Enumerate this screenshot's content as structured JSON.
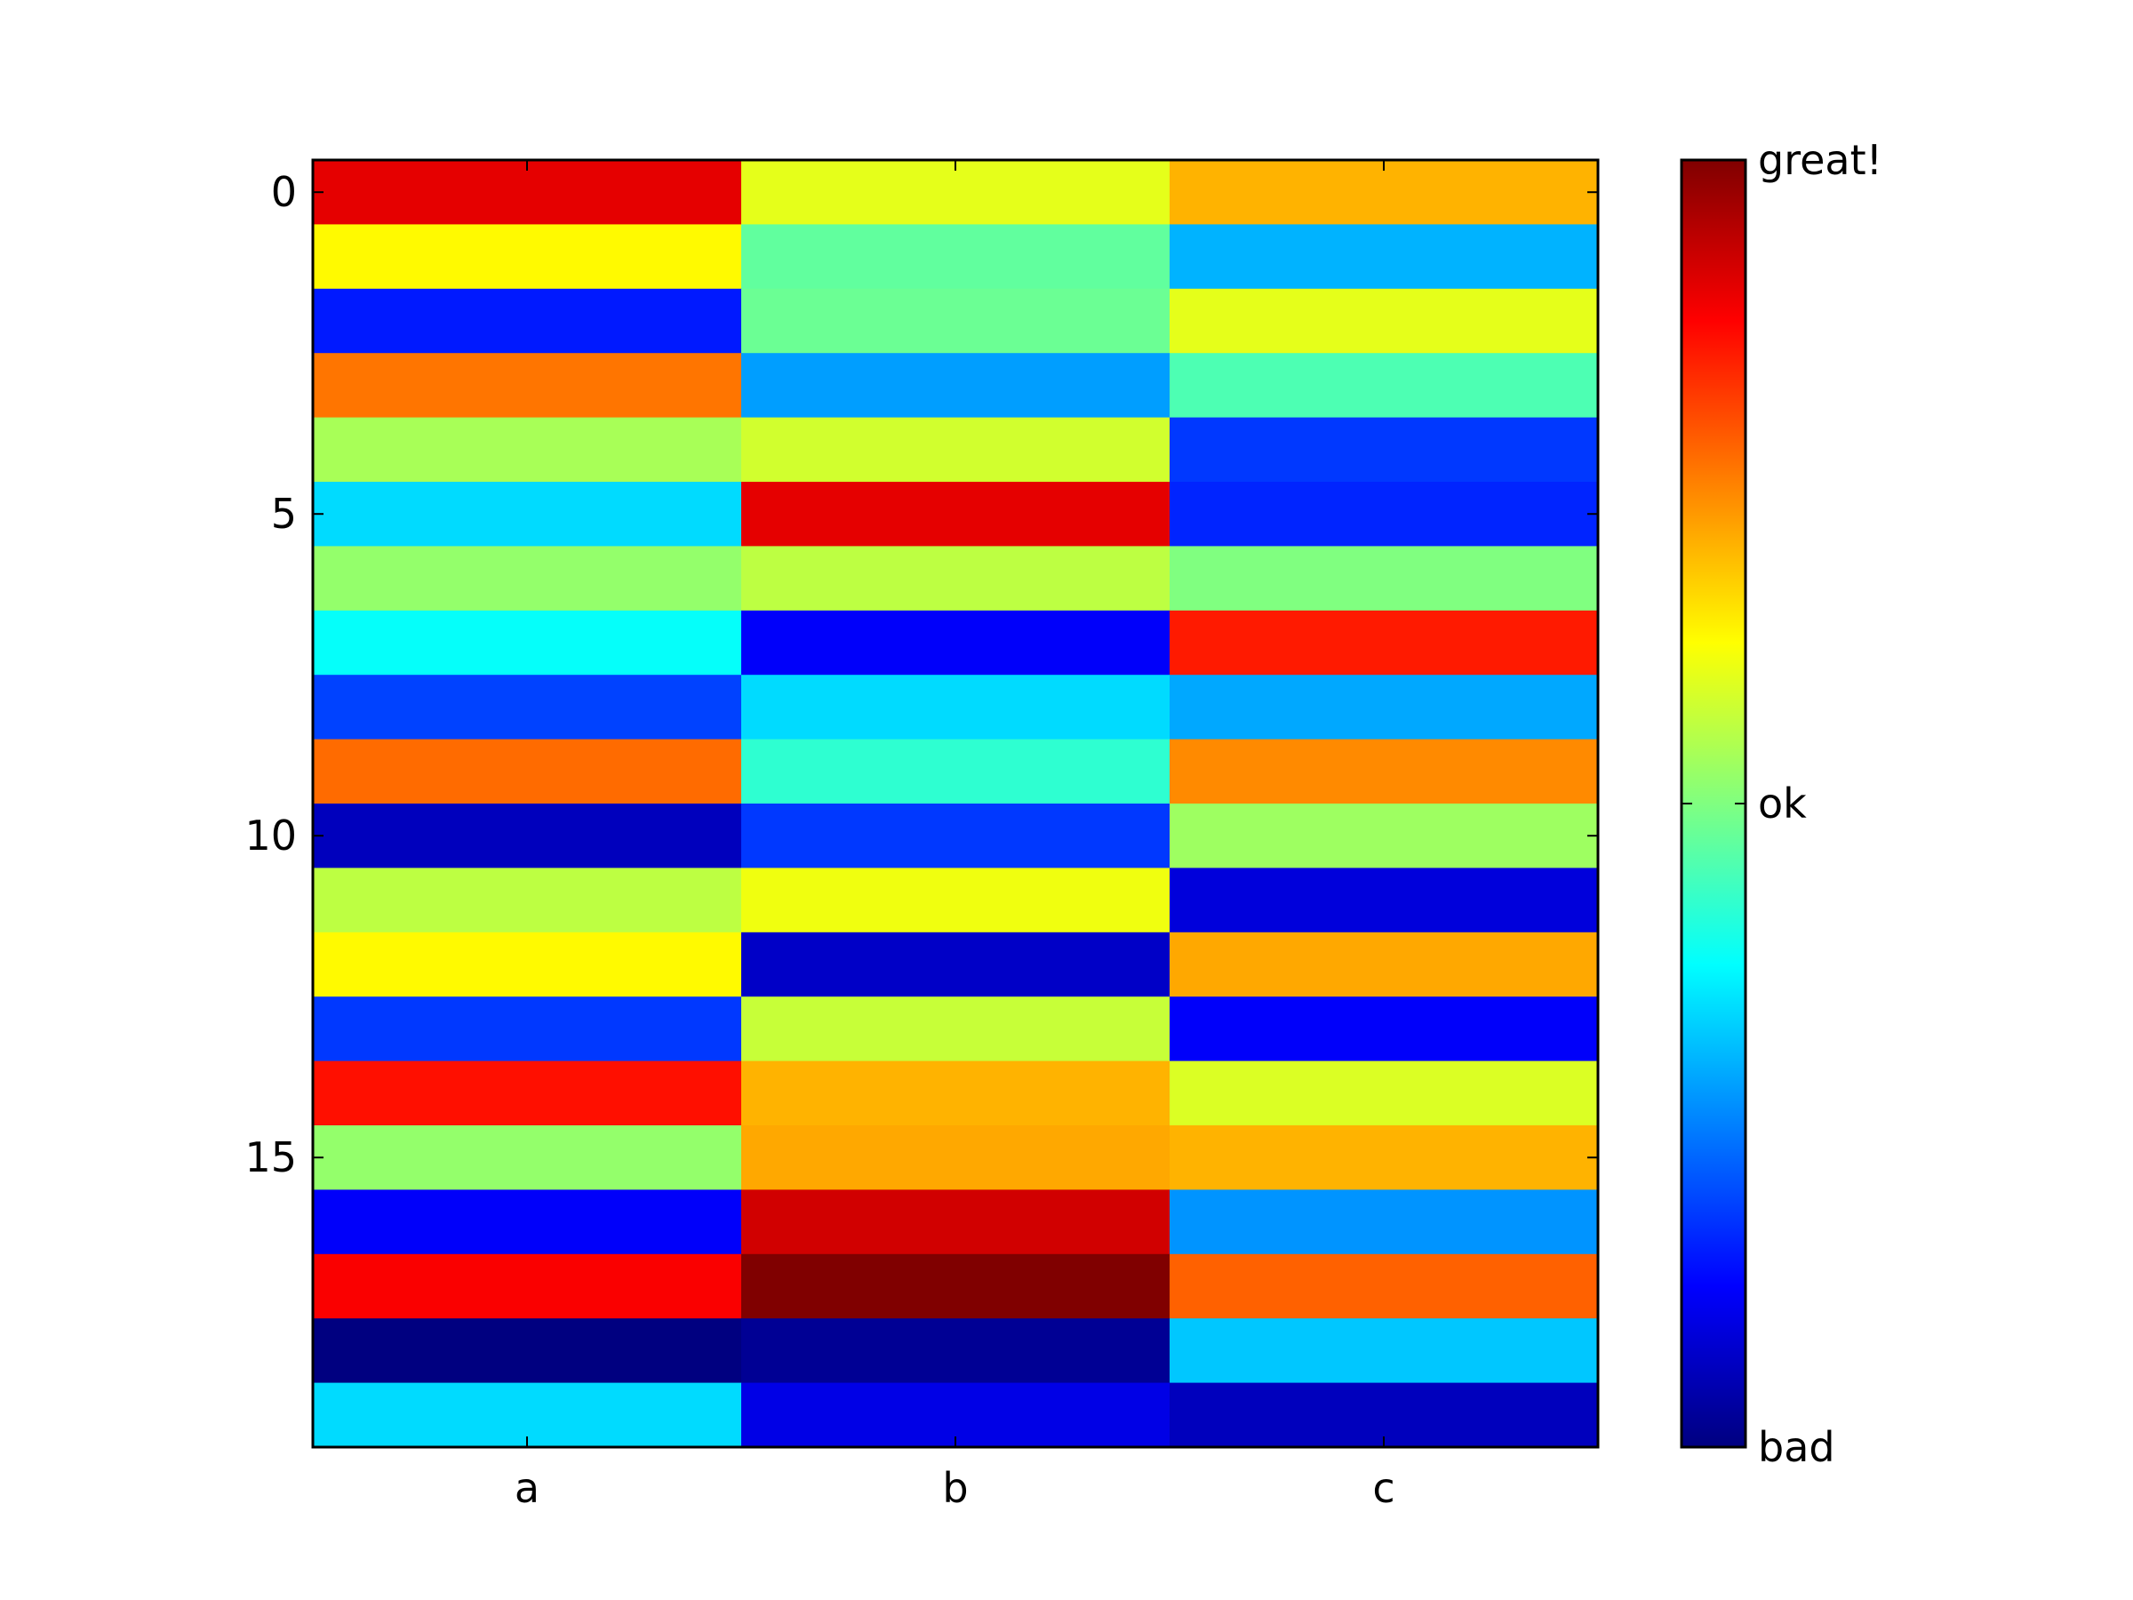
{
  "chart_data": {
    "type": "heatmap",
    "colormap": "jet",
    "grid": false,
    "x_categories": [
      "a",
      "b",
      "c"
    ],
    "y_ticks": [
      0,
      5,
      10,
      15
    ],
    "y_tick_labels": [
      "0",
      "5",
      "10",
      "15"
    ],
    "vlim": [
      0,
      1
    ],
    "rows": 20,
    "values": [
      [
        0.9,
        0.6,
        0.7
      ],
      [
        0.63,
        0.47,
        0.3
      ],
      [
        0.15,
        0.48,
        0.6
      ],
      [
        0.76,
        0.28,
        0.45
      ],
      [
        0.54,
        0.58,
        0.18
      ],
      [
        0.34,
        0.9,
        0.16
      ],
      [
        0.52,
        0.56,
        0.5
      ],
      [
        0.38,
        0.12,
        0.85
      ],
      [
        0.19,
        0.34,
        0.29
      ],
      [
        0.77,
        0.42,
        0.74
      ],
      [
        0.06,
        0.18,
        0.53
      ],
      [
        0.56,
        0.61,
        0.09
      ],
      [
        0.63,
        0.07,
        0.71
      ],
      [
        0.18,
        0.57,
        0.12
      ],
      [
        0.86,
        0.7,
        0.59
      ],
      [
        0.52,
        0.71,
        0.7
      ],
      [
        0.12,
        0.92,
        0.27
      ],
      [
        0.88,
        1.0,
        0.78
      ],
      [
        0.0,
        0.02,
        0.32
      ],
      [
        0.34,
        0.1,
        0.06
      ]
    ],
    "colorbar": {
      "ticks": [
        0,
        0.5,
        1
      ],
      "tick_labels": [
        "bad",
        "ok",
        "great!"
      ]
    }
  }
}
